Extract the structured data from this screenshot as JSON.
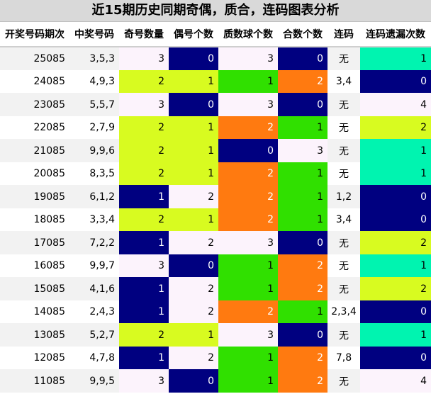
{
  "title": "近15期历史同期奇偶，质合，连码图表分析",
  "columns": [
    "开奖号码期次",
    "中奖号码",
    "奇号数量",
    "偶号个数",
    "质数球个数",
    "合数个数",
    "连码",
    "连码遗漏次数"
  ],
  "colors": {
    "navy": "#000080",
    "lime": "#d8fb20",
    "green": "#30e000",
    "orange": "#ff7a10",
    "teal": "#00f4b0",
    "light": "#fcf3fc"
  },
  "rows": [
    {
      "period": "25085",
      "numbers": "3,5,3",
      "odd": "3",
      "even": "0",
      "prime": "3",
      "composite": "0",
      "consec": "无",
      "miss": "1"
    },
    {
      "period": "24085",
      "numbers": "4,9,3",
      "odd": "2",
      "even": "1",
      "prime": "1",
      "composite": "2",
      "consec": "3,4",
      "miss": "0"
    },
    {
      "period": "23085",
      "numbers": "5,5,7",
      "odd": "3",
      "even": "0",
      "prime": "3",
      "composite": "0",
      "consec": "无",
      "miss": "4"
    },
    {
      "period": "22085",
      "numbers": "2,7,9",
      "odd": "2",
      "even": "1",
      "prime": "2",
      "composite": "1",
      "consec": "无",
      "miss": "2"
    },
    {
      "period": "21085",
      "numbers": "9,9,6",
      "odd": "2",
      "even": "1",
      "prime": "0",
      "composite": "3",
      "consec": "无",
      "miss": "1"
    },
    {
      "period": "20085",
      "numbers": "8,3,5",
      "odd": "2",
      "even": "1",
      "prime": "2",
      "composite": "1",
      "consec": "无",
      "miss": "1"
    },
    {
      "period": "19085",
      "numbers": "6,1,2",
      "odd": "1",
      "even": "2",
      "prime": "2",
      "composite": "1",
      "consec": "1,2",
      "miss": "0"
    },
    {
      "period": "18085",
      "numbers": "3,3,4",
      "odd": "2",
      "even": "1",
      "prime": "2",
      "composite": "1",
      "consec": "3,4",
      "miss": "0"
    },
    {
      "period": "17085",
      "numbers": "7,2,2",
      "odd": "1",
      "even": "2",
      "prime": "3",
      "composite": "0",
      "consec": "无",
      "miss": "2"
    },
    {
      "period": "16085",
      "numbers": "9,9,7",
      "odd": "3",
      "even": "0",
      "prime": "1",
      "composite": "2",
      "consec": "无",
      "miss": "1"
    },
    {
      "period": "15085",
      "numbers": "4,1,6",
      "odd": "1",
      "even": "2",
      "prime": "1",
      "composite": "2",
      "consec": "无",
      "miss": "2"
    },
    {
      "period": "14085",
      "numbers": "2,4,3",
      "odd": "1",
      "even": "2",
      "prime": "2",
      "composite": "1",
      "consec": "2,3,4",
      "miss": "0"
    },
    {
      "period": "13085",
      "numbers": "5,2,7",
      "odd": "2",
      "even": "1",
      "prime": "3",
      "composite": "0",
      "consec": "无",
      "miss": "1"
    },
    {
      "period": "12085",
      "numbers": "4,7,8",
      "odd": "1",
      "even": "2",
      "prime": "1",
      "composite": "2",
      "consec": "7,8",
      "miss": "0"
    },
    {
      "period": "11085",
      "numbers": "9,9,5",
      "odd": "3",
      "even": "0",
      "prime": "1",
      "composite": "2",
      "consec": "无",
      "miss": "4"
    }
  ]
}
